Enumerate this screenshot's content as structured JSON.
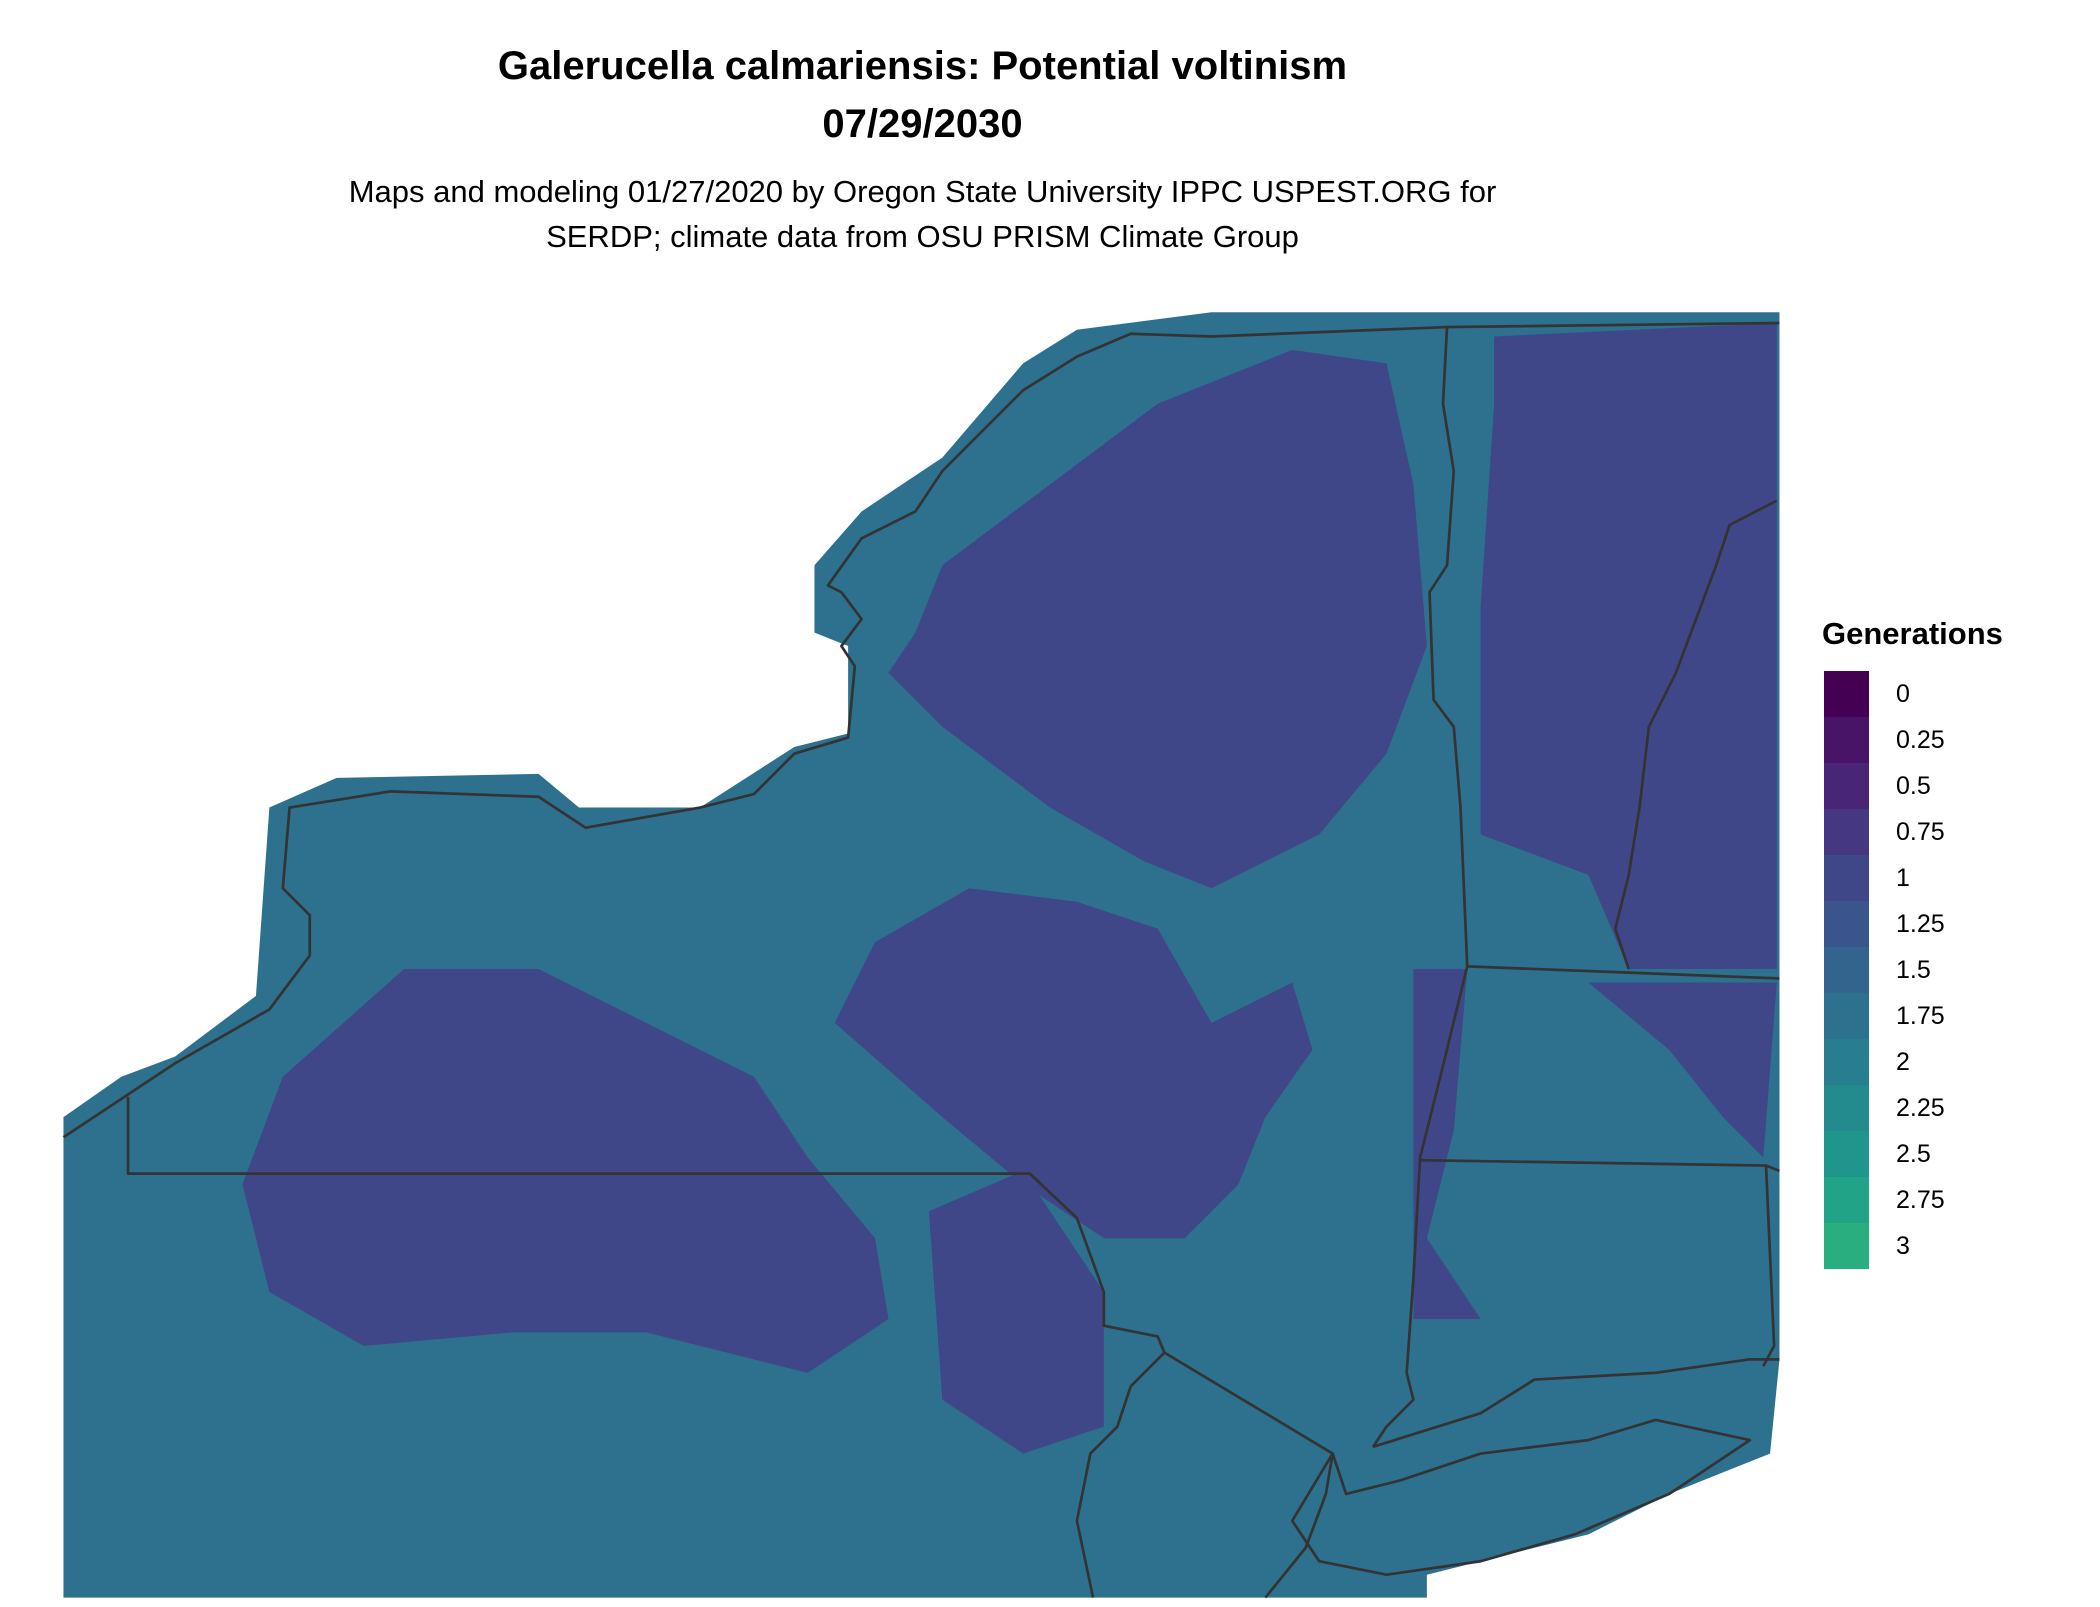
{
  "title": "Galerucella calmariensis: Potential voltinism",
  "date": "07/29/2030",
  "subtitle_line1": "Maps and modeling 01/27/2020 by Oregon State University IPPC USPEST.ORG for",
  "subtitle_line2": "SERDP; climate data from OSU PRISM Climate Group",
  "legend": {
    "title": "Generations",
    "items": [
      {
        "label": "0",
        "color": "#440154"
      },
      {
        "label": "0.25",
        "color": "#481467"
      },
      {
        "label": "0.5",
        "color": "#482576"
      },
      {
        "label": "0.75",
        "color": "#453781"
      },
      {
        "label": "1",
        "color": "#3f4788"
      },
      {
        "label": "1.25",
        "color": "#39558c"
      },
      {
        "label": "1.5",
        "color": "#32648e"
      },
      {
        "label": "1.75",
        "color": "#2d718e"
      },
      {
        "label": "2",
        "color": "#287d8e"
      },
      {
        "label": "2.25",
        "color": "#238a8d"
      },
      {
        "label": "2.5",
        "color": "#1f968b"
      },
      {
        "label": "2.75",
        "color": "#20a386"
      },
      {
        "label": "3",
        "color": "#29af7f"
      }
    ]
  },
  "map": {
    "base_color": "#2d718e",
    "high_color": "#3f4788",
    "border_color": "#333333"
  }
}
